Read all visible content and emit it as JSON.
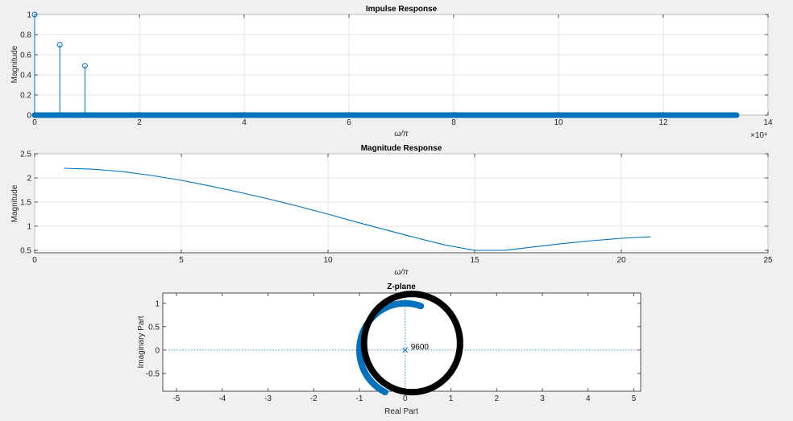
{
  "chart_data": [
    {
      "type": "stem",
      "title": "Impulse Response",
      "xlabel": "ω/π",
      "ylabel": "Magnitude",
      "xlim": [
        0,
        14
      ],
      "ylim": [
        0,
        1
      ],
      "x_multiplier_label": "×10⁴",
      "xticks": [
        0,
        2,
        4,
        6,
        8,
        10,
        12,
        14
      ],
      "yticks": [
        0,
        0.2,
        0.4,
        0.6,
        0.8,
        1
      ],
      "xtick_labels": [
        "0",
        "2",
        "4",
        "6",
        "8",
        "10",
        "12",
        "14"
      ],
      "ytick_labels": [
        "0",
        "0.2",
        "0.4",
        "0.6",
        "0.8",
        "1"
      ],
      "grid": true,
      "color": "#0072bd",
      "stems": [
        {
          "x": 0,
          "y": 1
        },
        {
          "x": 0.48,
          "y": 0.7
        },
        {
          "x": 0.96,
          "y": 0.49
        }
      ],
      "zero_band": {
        "x_start": 0,
        "x_end": 13.4,
        "y": 0
      }
    },
    {
      "type": "line",
      "title": "Magnitude Response",
      "xlabel": "ω/π",
      "ylabel": "Magnitude",
      "xlim": [
        0,
        25
      ],
      "ylim": [
        0.45,
        2.5
      ],
      "xticks": [
        0,
        5,
        10,
        15,
        20,
        25
      ],
      "yticks": [
        0.5,
        1,
        1.5,
        2,
        2.5
      ],
      "xtick_labels": [
        "0",
        "5",
        "10",
        "15",
        "20",
        "25"
      ],
      "ytick_labels": [
        "0.5",
        "1",
        "1.5",
        "2",
        "2.5"
      ],
      "grid": true,
      "color": "#0072bd",
      "x": [
        1,
        2,
        3,
        4,
        5,
        6,
        7,
        8,
        9,
        10,
        11,
        12,
        13,
        14,
        15,
        16,
        17,
        18,
        19,
        20,
        21
      ],
      "y": [
        2.2,
        2.18,
        2.13,
        2.05,
        1.95,
        1.83,
        1.7,
        1.56,
        1.41,
        1.25,
        1.08,
        0.92,
        0.76,
        0.61,
        0.5,
        0.5,
        0.57,
        0.64,
        0.7,
        0.75,
        0.78
      ]
    },
    {
      "type": "pole-zero",
      "title": "Z-plane",
      "xlabel": "Real Part",
      "ylabel": "Imaginary Part",
      "xlim": [
        -5.3,
        5.15
      ],
      "ylim": [
        -0.88,
        1.22
      ],
      "xticks": [
        -5,
        -4,
        -3,
        -2,
        -1,
        0,
        1,
        2,
        3,
        4,
        5
      ],
      "yticks": [
        -0.5,
        0,
        0.5,
        1
      ],
      "xtick_labels": [
        "-5",
        "-4",
        "-3",
        "-2",
        "-1",
        "0",
        "1",
        "2",
        "3",
        "4",
        "5"
      ],
      "ytick_labels": [
        "-0.5",
        "0",
        "0.5",
        "1"
      ],
      "unit_circle_style": "dotted",
      "zeros_color": "#0072bd",
      "unit_ring_color": "#000000",
      "pole_marker": {
        "x": 0,
        "y": 0,
        "label": "9600"
      },
      "zeros_arc": {
        "radius": 1.0,
        "center": [
          0,
          0
        ],
        "from_deg": 70,
        "to_deg": 245
      },
      "ring": {
        "radius": 1.05,
        "center": [
          0.15,
          0.15
        ]
      }
    }
  ]
}
